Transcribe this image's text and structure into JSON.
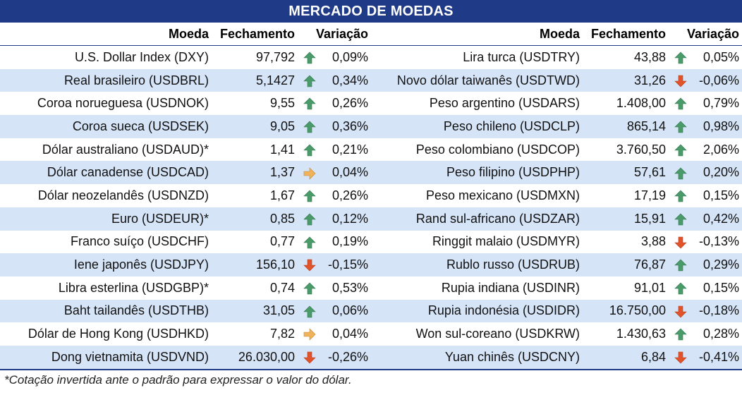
{
  "title": "MERCADO DE MOEDAS",
  "columns": {
    "moeda": "Moeda",
    "fechamento": "Fechamento",
    "variacao": "Variação"
  },
  "colors": {
    "header_bg": "#1f3a86",
    "alt_row": "#d6e4f7",
    "up": "#4a9a6a",
    "down": "#e0532b",
    "flat": "#e8a23a"
  },
  "left": [
    {
      "moeda": "U.S. Dollar Index (DXY)",
      "fechamento": "97,792",
      "trend": "up",
      "variacao": "0,09%"
    },
    {
      "moeda": "Real brasileiro (USDBRL)",
      "fechamento": "5,1427",
      "trend": "up",
      "variacao": "0,34%"
    },
    {
      "moeda": "Coroa norueguesa (USDNOK)",
      "fechamento": "9,55",
      "trend": "up",
      "variacao": "0,26%"
    },
    {
      "moeda": "Coroa sueca (USDSEK)",
      "fechamento": "9,05",
      "trend": "up",
      "variacao": "0,36%"
    },
    {
      "moeda": "Dólar australiano (USDAUD)*",
      "fechamento": "1,41",
      "trend": "up",
      "variacao": "0,21%"
    },
    {
      "moeda": "Dólar canadense (USDCAD)",
      "fechamento": "1,37",
      "trend": "flat",
      "variacao": "0,04%"
    },
    {
      "moeda": "Dólar neozelandês (USDNZD)",
      "fechamento": "1,67",
      "trend": "up",
      "variacao": "0,26%"
    },
    {
      "moeda": "Euro (USDEUR)*",
      "fechamento": "0,85",
      "trend": "up",
      "variacao": "0,12%"
    },
    {
      "moeda": "Franco suíço (USDCHF)",
      "fechamento": "0,77",
      "trend": "up",
      "variacao": "0,19%"
    },
    {
      "moeda": "Iene japonês (USDJPY)",
      "fechamento": "156,10",
      "trend": "down",
      "variacao": "-0,15%"
    },
    {
      "moeda": "Libra esterlina (USDGBP)*",
      "fechamento": "0,74",
      "trend": "up",
      "variacao": "0,53%"
    },
    {
      "moeda": "Baht tailandês (USDTHB)",
      "fechamento": "31,05",
      "trend": "up",
      "variacao": "0,06%"
    },
    {
      "moeda": "Dólar de Hong Kong (USDHKD)",
      "fechamento": "7,82",
      "trend": "flat",
      "variacao": "0,04%"
    },
    {
      "moeda": "Dong vietnamita (USDVND)",
      "fechamento": "26.030,00",
      "trend": "down",
      "variacao": "-0,26%"
    }
  ],
  "right": [
    {
      "moeda": "Lira turca (USDTRY)",
      "fechamento": "43,88",
      "trend": "up",
      "variacao": "0,05%"
    },
    {
      "moeda": "Novo dólar taiwanês (USDTWD)",
      "fechamento": "31,26",
      "trend": "down",
      "variacao": "-0,06%"
    },
    {
      "moeda": "Peso argentino (USDARS)",
      "fechamento": "1.408,00",
      "trend": "up",
      "variacao": "0,79%"
    },
    {
      "moeda": "Peso chileno (USDCLP)",
      "fechamento": "865,14",
      "trend": "up",
      "variacao": "0,98%"
    },
    {
      "moeda": "Peso colombiano (USDCOP)",
      "fechamento": "3.760,50",
      "trend": "up",
      "variacao": "2,06%"
    },
    {
      "moeda": "Peso filipino (USDPHP)",
      "fechamento": "57,61",
      "trend": "up",
      "variacao": "0,20%"
    },
    {
      "moeda": "Peso mexicano (USDMXN)",
      "fechamento": "17,19",
      "trend": "up",
      "variacao": "0,15%"
    },
    {
      "moeda": "Rand sul-africano (USDZAR)",
      "fechamento": "15,91",
      "trend": "up",
      "variacao": "0,42%"
    },
    {
      "moeda": "Ringgit malaio (USDMYR)",
      "fechamento": "3,88",
      "trend": "down",
      "variacao": "-0,13%"
    },
    {
      "moeda": "Rublo russo (USDRUB)",
      "fechamento": "76,87",
      "trend": "up",
      "variacao": "0,29%"
    },
    {
      "moeda": "Rupia indiana (USDINR)",
      "fechamento": "91,01",
      "trend": "up",
      "variacao": "0,15%"
    },
    {
      "moeda": "Rupia indonésia (USDIDR)",
      "fechamento": "16.750,00",
      "trend": "down",
      "variacao": "-0,18%"
    },
    {
      "moeda": "Won sul-coreano (USDKRW)",
      "fechamento": "1.430,63",
      "trend": "up",
      "variacao": "0,28%"
    },
    {
      "moeda": "Yuan chinês (USDCNY)",
      "fechamento": "6,84",
      "trend": "down",
      "variacao": "-0,41%"
    }
  ],
  "footnote": "*Cotação invertida ante o padrão para expressar o valor do dólar."
}
